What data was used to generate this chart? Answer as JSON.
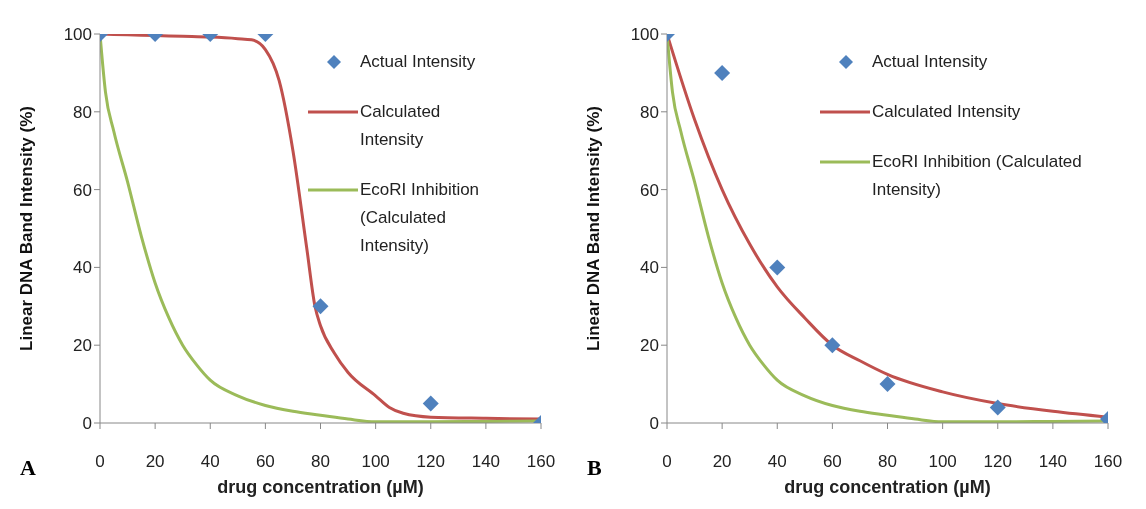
{
  "chart_data": [
    {
      "type": "line",
      "xlabel": "drug concentration  (µM)",
      "ylabel": "Linear DNA Band  Intensity (%)",
      "xlim": [
        0,
        160
      ],
      "xticks": [
        0,
        20,
        40,
        60,
        80,
        100,
        120,
        140,
        160
      ],
      "ylim": [
        0,
        100
      ],
      "yticks": [
        0,
        20,
        40,
        60,
        80,
        100
      ],
      "grid": false,
      "legend": "right",
      "annotations": [
        "A"
      ],
      "series": [
        {
          "name": "Actual Intensity",
          "type": "scatter",
          "marker": "diamond",
          "color": "#4f81bd",
          "x": [
            0,
            20,
            40,
            60,
            80,
            120,
            160
          ],
          "values": [
            100,
            100,
            100,
            100,
            30,
            5,
            0
          ]
        },
        {
          "name": "Calculated Intensity",
          "type": "line",
          "color": "#c0504d",
          "x": [
            0,
            10,
            20,
            30,
            40,
            50,
            55,
            60,
            65,
            70,
            75,
            78,
            80,
            85,
            90,
            100,
            105,
            110,
            120,
            140,
            160
          ],
          "values": [
            100,
            99.8,
            99.6,
            99.4,
            99.2,
            98.8,
            98.5,
            96,
            88,
            70,
            45,
            30,
            25,
            18,
            13,
            7,
            4,
            2.5,
            1.5,
            1.2,
            1
          ]
        },
        {
          "name": "EcoRI Inhibition (Calculated Intensity)",
          "type": "line",
          "color": "#9bbb59",
          "x": [
            0,
            2,
            5,
            10,
            15,
            20,
            25,
            30,
            35,
            40,
            50,
            60,
            70,
            80,
            90,
            100,
            120,
            140,
            160
          ],
          "values": [
            100,
            85,
            75,
            62,
            48,
            36,
            27,
            20,
            15,
            11,
            7,
            4.5,
            3,
            2,
            1,
            0.3,
            0.3,
            0.4,
            0.5
          ]
        }
      ]
    },
    {
      "type": "line",
      "xlabel": "drug concentration  (µM)",
      "ylabel": "Linear DNA Band  Intensity (%)",
      "xlim": [
        0,
        160
      ],
      "xticks": [
        0,
        20,
        40,
        60,
        80,
        100,
        120,
        140,
        160
      ],
      "ylim": [
        0,
        100
      ],
      "yticks": [
        0,
        20,
        40,
        60,
        80,
        100
      ],
      "grid": false,
      "legend": "right",
      "annotations": [
        "B"
      ],
      "series": [
        {
          "name": "Actual Intensity",
          "type": "scatter",
          "marker": "diamond",
          "color": "#4f81bd",
          "x": [
            0,
            20,
            40,
            60,
            80,
            120,
            160
          ],
          "values": [
            100,
            90,
            40,
            20,
            10,
            4,
            1
          ]
        },
        {
          "name": "Calculated Intensity",
          "type": "line",
          "color": "#c0504d",
          "x": [
            0,
            10,
            20,
            30,
            40,
            50,
            60,
            70,
            80,
            100,
            120,
            140,
            160
          ],
          "values": [
            100,
            78,
            60,
            46,
            35,
            27,
            20,
            16,
            12.5,
            8,
            5,
            3,
            1.5
          ]
        },
        {
          "name": "EcoRI Inhibition (Calculated Intensity)",
          "type": "line",
          "color": "#9bbb59",
          "x": [
            0,
            2,
            5,
            10,
            15,
            20,
            25,
            30,
            35,
            40,
            50,
            60,
            70,
            80,
            90,
            100,
            120,
            140,
            160
          ],
          "values": [
            100,
            85,
            75,
            62,
            48,
            36,
            27,
            20,
            15,
            11,
            7,
            4.5,
            3,
            2,
            1,
            0.3,
            0.3,
            0.4,
            0.5
          ]
        }
      ]
    }
  ]
}
